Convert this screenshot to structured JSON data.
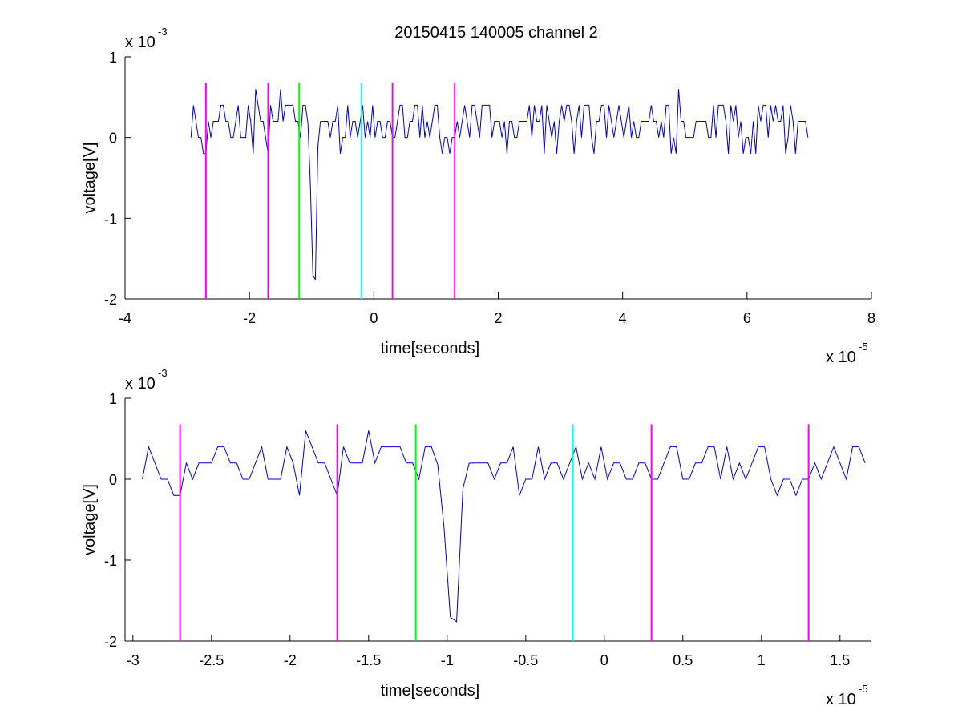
{
  "figure_title": "20150415 140005 channel 2",
  "colors": {
    "signal": "#0000cc",
    "magenta": "#ff00ff",
    "green": "#00ff00",
    "cyan": "#00ffff",
    "axes": "#000000"
  },
  "chart_data": [
    {
      "type": "line",
      "title": "20150415 140005 channel 2",
      "xlabel": "time[seconds]",
      "ylabel": "voltage[V]",
      "x_exponent_label": "x 10",
      "x_exponent_power": "-5",
      "y_exponent_label": "x 10",
      "y_exponent_power": "-3",
      "xlim": [
        -4,
        8
      ],
      "ylim": [
        -2,
        1
      ],
      "xticks": [
        -4,
        -2,
        0,
        2,
        4,
        6,
        8
      ],
      "xtick_labels": [
        "-4",
        "-2",
        "0",
        "2",
        "4",
        "6",
        "8"
      ],
      "yticks": [
        -2,
        -1,
        0,
        1
      ],
      "ytick_labels": [
        "-2",
        "-1",
        "0",
        "1"
      ],
      "grid": false,
      "series": [
        {
          "signal_range_x": [
            -2.94,
            7.0
          ],
          "baseline": 0.1,
          "noise_levels": [
            -0.2,
            0.0,
            0.2,
            0.4
          ],
          "spike": {
            "x": -0.97,
            "min": -1.8
          },
          "peak_max": 0.6
        }
      ],
      "vertical_markers": [
        {
          "x": -2.7,
          "color": "magenta"
        },
        {
          "x": -1.7,
          "color": "magenta"
        },
        {
          "x": -1.2,
          "color": "green"
        },
        {
          "x": -0.2,
          "color": "cyan"
        },
        {
          "x": 0.3,
          "color": "magenta"
        },
        {
          "x": 1.3,
          "color": "magenta"
        }
      ],
      "marker_y_range": [
        -2,
        0.68
      ]
    },
    {
      "type": "line",
      "xlabel": "time[seconds]",
      "ylabel": "voltage[V]",
      "x_exponent_label": "x 10",
      "x_exponent_power": "-5",
      "y_exponent_label": "x 10",
      "y_exponent_power": "-3",
      "xlim": [
        -3.05,
        1.7
      ],
      "ylim": [
        -2,
        1
      ],
      "xticks": [
        -3,
        -2.5,
        -2,
        -1.5,
        -1,
        -0.5,
        0,
        0.5,
        1,
        1.5
      ],
      "xtick_labels": [
        "-3",
        "-2.5",
        "-2",
        "-1.5",
        "-1",
        "-0.5",
        "0",
        "0.5",
        "1",
        "1.5"
      ],
      "yticks": [
        -2,
        -1,
        0,
        1
      ],
      "ytick_labels": [
        "-2",
        "-1",
        "0",
        "1"
      ],
      "grid": false,
      "series": [
        {
          "signal_range_x": [
            -2.94,
            1.7
          ],
          "baseline": 0.1,
          "noise_levels": [
            -0.2,
            0.0,
            0.2,
            0.4
          ],
          "spike": {
            "x": -0.97,
            "min": -1.8
          },
          "peak_max": 0.6
        }
      ],
      "vertical_markers": [
        {
          "x": -2.7,
          "color": "magenta"
        },
        {
          "x": -1.7,
          "color": "magenta"
        },
        {
          "x": -1.2,
          "color": "green"
        },
        {
          "x": -0.2,
          "color": "cyan"
        },
        {
          "x": 0.3,
          "color": "magenta"
        },
        {
          "x": 1.3,
          "color": "magenta"
        }
      ],
      "marker_y_range": [
        -2,
        0.68
      ]
    }
  ]
}
